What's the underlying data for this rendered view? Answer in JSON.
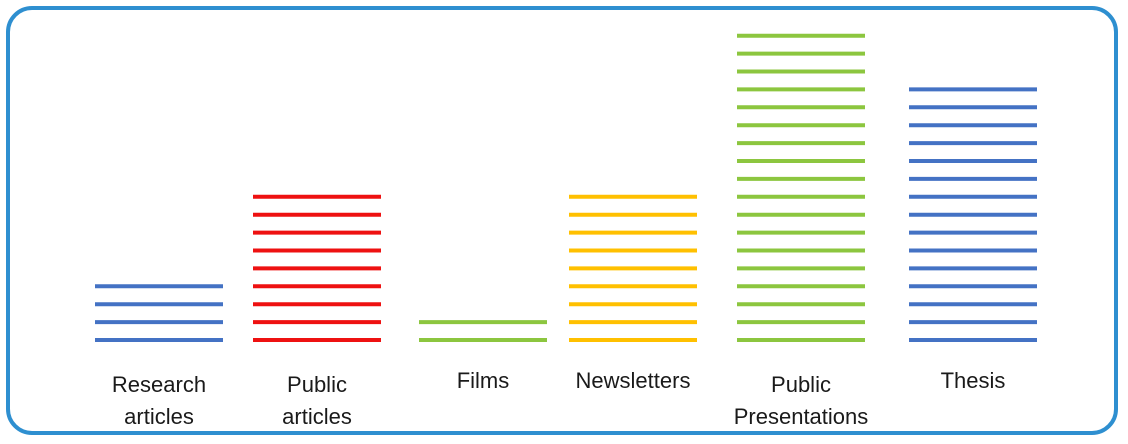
{
  "chart_data": {
    "type": "bar",
    "style": "stacked horizontal line marks per unit",
    "categories": [
      [
        "Research",
        "articles"
      ],
      [
        "Public",
        "articles"
      ],
      [
        "Films"
      ],
      [
        "Newsletters"
      ],
      [
        "Public",
        "Presentations"
      ],
      [
        "Thesis"
      ]
    ],
    "values": [
      4,
      9,
      2,
      9,
      18,
      15
    ],
    "colors": [
      "#4472c4",
      "#ee1111",
      "#8cc63f",
      "#ffc000",
      "#8cc63f",
      "#4472c4"
    ],
    "title": "",
    "xlabel": "",
    "ylabel": "",
    "grid": false,
    "legend": "none"
  },
  "frame": {
    "border_color": "#2e8fd0"
  }
}
